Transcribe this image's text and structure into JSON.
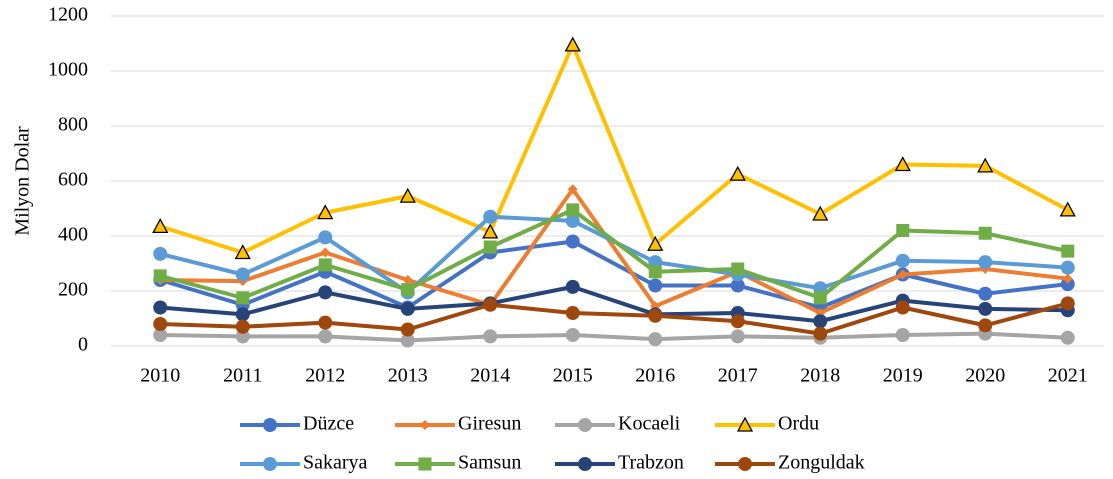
{
  "chart_data": {
    "type": "line",
    "y_label": "Milyon Dolar",
    "categories": [
      "2010",
      "2011",
      "2012",
      "2013",
      "2014",
      "2015",
      "2016",
      "2017",
      "2018",
      "2019",
      "2020",
      "2021"
    ],
    "ylim": [
      0,
      1200
    ],
    "yticks": [
      0,
      200,
      400,
      600,
      800,
      1000,
      1200
    ],
    "grid": true,
    "legend": "bottom",
    "series": [
      {
        "name": "Düzce",
        "color": "#4472c4",
        "marker": "circle",
        "values": [
          240,
          150,
          270,
          140,
          340,
          380,
          220,
          220,
          140,
          260,
          190,
          225
        ]
      },
      {
        "name": "Giresun",
        "color": "#ed7d31",
        "marker": "diamond",
        "values": [
          240,
          236,
          340,
          240,
          150,
          570,
          145,
          270,
          120,
          260,
          280,
          245
        ]
      },
      {
        "name": "Kocaeli",
        "color": "#a5a5a5",
        "marker": "circle",
        "values": [
          40,
          35,
          35,
          20,
          35,
          40,
          25,
          35,
          30,
          40,
          45,
          30
        ]
      },
      {
        "name": "Ordu",
        "color": "#ffc000",
        "marker": "triangle",
        "values": [
          435,
          340,
          485,
          545,
          415,
          1095,
          370,
          625,
          480,
          660,
          655,
          495
        ]
      },
      {
        "name": "Sakarya",
        "color": "#5b9bd5",
        "marker": "circle",
        "values": [
          335,
          260,
          395,
          195,
          470,
          455,
          305,
          260,
          210,
          310,
          305,
          285
        ]
      },
      {
        "name": "Samsun",
        "color": "#70ad47",
        "marker": "square",
        "values": [
          255,
          175,
          295,
          205,
          360,
          495,
          270,
          280,
          175,
          420,
          410,
          345
        ]
      },
      {
        "name": "Trabzon",
        "color": "#264478",
        "marker": "circle",
        "values": [
          140,
          115,
          195,
          135,
          155,
          215,
          115,
          120,
          90,
          165,
          135,
          130
        ]
      },
      {
        "name": "Zonguldak",
        "color": "#9e480e",
        "marker": "circle",
        "values": [
          80,
          70,
          85,
          60,
          150,
          120,
          110,
          90,
          45,
          140,
          75,
          155
        ]
      }
    ]
  }
}
